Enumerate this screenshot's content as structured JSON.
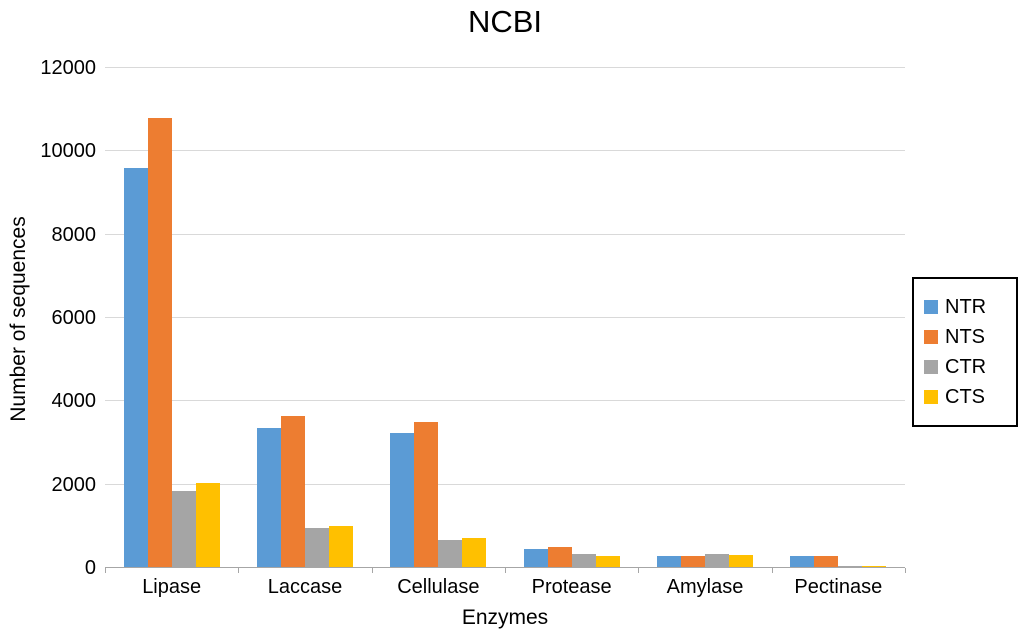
{
  "chart_data": {
    "type": "bar",
    "title": "NCBI",
    "xlabel": "Enzymes",
    "ylabel": "Number of sequences",
    "ylim": [
      0,
      12000
    ],
    "ytick_step": 2000,
    "grid": true,
    "legend_position": "right",
    "categories": [
      "Lipase",
      "Laccase",
      "Cellulase",
      "Protease",
      "Amylase",
      "Pectinase"
    ],
    "series": [
      {
        "name": "NTR",
        "color": "#5B9BD5",
        "values": [
          9600,
          3350,
          3250,
          460,
          280,
          280
        ]
      },
      {
        "name": "NTS",
        "color": "#ED7D31",
        "values": [
          10800,
          3650,
          3500,
          510,
          300,
          290
        ]
      },
      {
        "name": "CTR",
        "color": "#A5A5A5",
        "values": [
          1850,
          950,
          680,
          330,
          330,
          60
        ]
      },
      {
        "name": "CTS",
        "color": "#FFC000",
        "values": [
          2050,
          1020,
          720,
          290,
          310,
          40
        ]
      }
    ]
  }
}
